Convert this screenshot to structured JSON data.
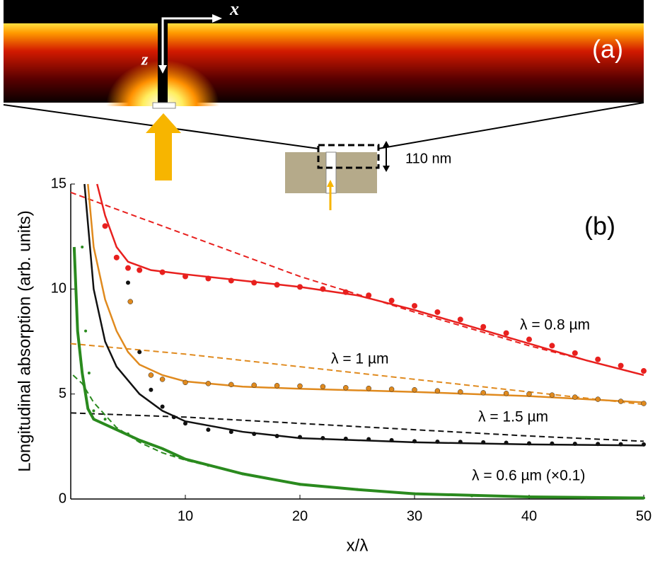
{
  "chart_data": {
    "type": "line",
    "panel_a_label": "(a)",
    "panel_b_label": "(b)",
    "axis_x_arrow_label": "x",
    "axis_z_arrow_label": "z",
    "thickness_label": "110 nm",
    "xlabel": "x/λ",
    "ylabel": "Longitudinal absorption (arb. units)",
    "xlim": [
      0,
      50
    ],
    "ylim": [
      0,
      15
    ],
    "xticks": [
      10,
      20,
      30,
      40,
      50
    ],
    "yticks": [
      0,
      5,
      10,
      15
    ],
    "series": [
      {
        "name": "λ = 0.8 µm",
        "color": "#e8201e",
        "x": [
          2.3,
          3,
          4,
          5,
          7,
          10,
          15,
          20,
          25,
          30,
          35,
          40,
          45,
          50
        ],
        "values": [
          15,
          13.5,
          12,
          11.3,
          10.9,
          10.7,
          10.4,
          10.1,
          9.7,
          9.0,
          8.2,
          7.4,
          6.6,
          5.9
        ],
        "dashed": {
          "x": [
            0,
            10,
            20,
            30,
            40,
            50
          ],
          "values": [
            14.6,
            12.6,
            10.6,
            8.9,
            7.3,
            5.9
          ]
        },
        "points": {
          "x": [
            3,
            4,
            5,
            6,
            8,
            10,
            12,
            14,
            16,
            18,
            20,
            22,
            24,
            26,
            28,
            30,
            32,
            34,
            36,
            38,
            40,
            42,
            44,
            46,
            48,
            50
          ],
          "values": [
            13,
            11.5,
            11.0,
            10.9,
            10.8,
            10.6,
            10.5,
            10.4,
            10.3,
            10.2,
            10.1,
            10.0,
            9.85,
            9.7,
            9.45,
            9.2,
            8.9,
            8.55,
            8.2,
            7.9,
            7.6,
            7.3,
            6.95,
            6.65,
            6.35,
            6.1
          ]
        }
      },
      {
        "name": "λ = 1 µm",
        "color": "#e08a1e",
        "x": [
          1.5,
          2,
          3,
          4,
          5,
          6,
          8,
          10,
          15,
          20,
          30,
          40,
          50
        ],
        "values": [
          15,
          12,
          9.5,
          8,
          7.0,
          6.4,
          5.9,
          5.6,
          5.35,
          5.25,
          5.1,
          4.9,
          4.6
        ],
        "dashed": {
          "x": [
            0,
            10,
            20,
            30,
            40,
            50
          ],
          "values": [
            7.4,
            6.9,
            6.3,
            5.7,
            5.1,
            4.5
          ]
        },
        "points": {
          "x": [
            5.2,
            7,
            8,
            10,
            12,
            14,
            16,
            18,
            20,
            22,
            24,
            26,
            28,
            30,
            32,
            34,
            36,
            38,
            40,
            42,
            44,
            46,
            48,
            50
          ],
          "values": [
            9.4,
            5.9,
            5.7,
            5.55,
            5.5,
            5.45,
            5.42,
            5.4,
            5.38,
            5.35,
            5.3,
            5.27,
            5.23,
            5.2,
            5.15,
            5.1,
            5.06,
            5.03,
            5.0,
            4.95,
            4.85,
            4.75,
            4.65,
            4.55
          ]
        }
      },
      {
        "name": "λ = 1.5 µm",
        "color": "#111111",
        "x": [
          1.2,
          2,
          3,
          4,
          6,
          8,
          10,
          15,
          20,
          30,
          40,
          50
        ],
        "values": [
          15,
          10,
          7.5,
          6.3,
          5.0,
          4.2,
          3.7,
          3.2,
          2.9,
          2.7,
          2.6,
          2.55
        ],
        "dashed": {
          "x": [
            0,
            10,
            20,
            30,
            40,
            50
          ],
          "values": [
            4.1,
            3.9,
            3.6,
            3.3,
            3.0,
            2.75
          ]
        },
        "points": {
          "x": [
            5,
            6,
            7,
            8,
            9,
            10,
            12,
            14,
            16,
            18,
            20,
            22,
            24,
            26,
            28,
            30,
            32,
            34,
            36,
            38,
            40,
            42,
            44,
            46,
            48,
            50
          ],
          "values": [
            10.3,
            7.0,
            5.2,
            4.4,
            3.9,
            3.6,
            3.3,
            3.2,
            3.1,
            3.0,
            2.95,
            2.9,
            2.87,
            2.85,
            2.8,
            2.75,
            2.73,
            2.72,
            2.7,
            2.68,
            2.65,
            2.64,
            2.63,
            2.62,
            2.61,
            2.6
          ]
        }
      },
      {
        "name": "λ = 0.6 µm  (×0.1)",
        "color": "#2a8a1e",
        "x": [
          0.3,
          0.6,
          1,
          1.5,
          2,
          4,
          6,
          8,
          10,
          15,
          20,
          25,
          30,
          40,
          50
        ],
        "values": [
          12,
          8,
          6,
          4.3,
          3.8,
          3.3,
          2.8,
          2.4,
          1.9,
          1.2,
          0.7,
          0.45,
          0.25,
          0.1,
          0.05
        ],
        "dashed": {
          "x": [
            0.2,
            1,
            2,
            4,
            6,
            8,
            10,
            15,
            20,
            30,
            40,
            50
          ],
          "values": [
            5.9,
            5.5,
            4.6,
            3.4,
            2.7,
            2.2,
            1.85,
            1.2,
            0.7,
            0.25,
            0.1,
            0.05
          ]
        },
        "points": {
          "x": [
            1,
            1.3,
            1.6,
            2,
            3,
            5,
            7,
            9,
            12,
            15,
            20,
            25,
            30,
            35,
            40,
            45,
            50
          ],
          "values": [
            12,
            8,
            6,
            4.2,
            3.8,
            3.1,
            2.6,
            2.1,
            1.6,
            1.2,
            0.7,
            0.45,
            0.25,
            0.15,
            0.1,
            0.07,
            0.05
          ]
        }
      }
    ]
  }
}
